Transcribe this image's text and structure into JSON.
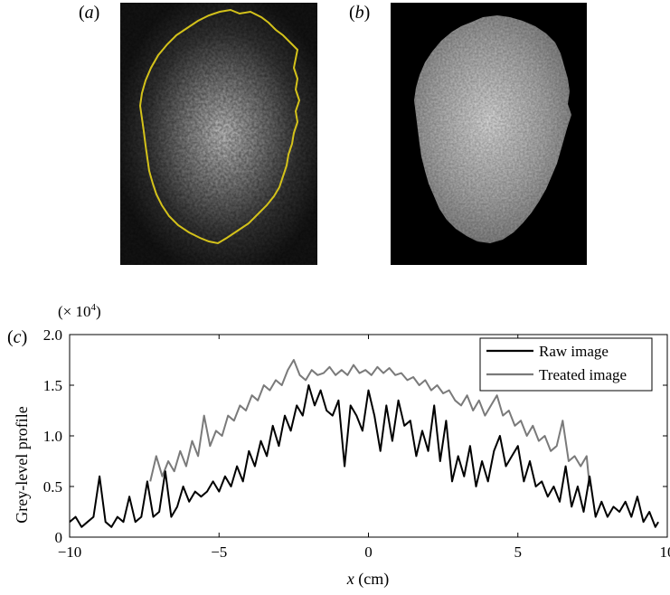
{
  "figure": {
    "panel_a_label": "a",
    "panel_b_label": "b",
    "panel_c_label": "c"
  },
  "images": {
    "a_description": "",
    "b_description": ""
  },
  "colors": {
    "raw": "#000000",
    "treated": "#7a7a7a",
    "outline": "#d4c21a"
  },
  "chart_data": {
    "type": "line",
    "xlabel": "x (cm)",
    "xlabel_var": "x",
    "xlabel_unit": " (cm)",
    "ylabel": "Grey-level profile",
    "y_multiplier": "(× 10",
    "y_multiplier_exp": "4",
    "y_multiplier_close": ")",
    "xlim": [
      -10,
      10
    ],
    "ylim": [
      0,
      2.0
    ],
    "x_ticks": [
      -10,
      -5,
      0,
      5,
      10
    ],
    "x_tick_labels": [
      "−10",
      "−5",
      "0",
      "5",
      "10"
    ],
    "y_ticks": [
      0,
      0.5,
      1.0,
      1.5,
      2.0
    ],
    "y_tick_labels": [
      "0",
      "0.5",
      "1.0",
      "1.5",
      "2.0"
    ],
    "legend_position": "top-right",
    "series": [
      {
        "name": "Raw image",
        "color": "#000000",
        "x": [
          -10,
          -9.8,
          -9.6,
          -9.4,
          -9.2,
          -9.0,
          -8.8,
          -8.6,
          -8.4,
          -8.2,
          -8.0,
          -7.8,
          -7.6,
          -7.4,
          -7.2,
          -7.0,
          -6.8,
          -6.6,
          -6.4,
          -6.2,
          -6.0,
          -5.8,
          -5.6,
          -5.4,
          -5.2,
          -5.0,
          -4.8,
          -4.6,
          -4.4,
          -4.2,
          -4.0,
          -3.8,
          -3.6,
          -3.4,
          -3.2,
          -3.0,
          -2.8,
          -2.6,
          -2.4,
          -2.2,
          -2.0,
          -1.8,
          -1.6,
          -1.4,
          -1.2,
          -1.0,
          -0.8,
          -0.6,
          -0.4,
          -0.2,
          0.0,
          0.2,
          0.4,
          0.6,
          0.8,
          1.0,
          1.2,
          1.4,
          1.6,
          1.8,
          2.0,
          2.2,
          2.4,
          2.6,
          2.8,
          3.0,
          3.2,
          3.4,
          3.6,
          3.8,
          4.0,
          4.2,
          4.4,
          4.6,
          4.8,
          5.0,
          5.2,
          5.4,
          5.6,
          5.8,
          6.0,
          6.2,
          6.4,
          6.6,
          6.8,
          7.0,
          7.2,
          7.4,
          7.6,
          7.8,
          8.0,
          8.2,
          8.4,
          8.6,
          8.8,
          9.0,
          9.2,
          9.4,
          9.6,
          9.7
        ],
        "y": [
          0.15,
          0.2,
          0.1,
          0.15,
          0.2,
          0.6,
          0.15,
          0.1,
          0.2,
          0.15,
          0.4,
          0.15,
          0.2,
          0.55,
          0.2,
          0.25,
          0.65,
          0.2,
          0.3,
          0.5,
          0.35,
          0.45,
          0.4,
          0.45,
          0.55,
          0.45,
          0.6,
          0.5,
          0.7,
          0.55,
          0.85,
          0.7,
          0.95,
          0.8,
          1.1,
          0.9,
          1.2,
          1.05,
          1.3,
          1.2,
          1.5,
          1.3,
          1.45,
          1.25,
          1.2,
          1.35,
          0.7,
          1.3,
          1.2,
          1.05,
          1.45,
          1.2,
          0.85,
          1.3,
          0.95,
          1.35,
          1.1,
          1.15,
          0.8,
          1.05,
          0.85,
          1.3,
          0.75,
          1.15,
          0.55,
          0.8,
          0.6,
          0.9,
          0.5,
          0.75,
          0.55,
          0.85,
          1.0,
          0.7,
          0.8,
          0.9,
          0.55,
          0.75,
          0.5,
          0.55,
          0.4,
          0.5,
          0.35,
          0.7,
          0.3,
          0.5,
          0.25,
          0.6,
          0.2,
          0.35,
          0.2,
          0.3,
          0.25,
          0.35,
          0.2,
          0.4,
          0.15,
          0.25,
          0.1,
          0.15
        ]
      },
      {
        "name": "Treated image",
        "color": "#7a7a7a",
        "x": [
          -7.3,
          -7.1,
          -6.9,
          -6.7,
          -6.5,
          -6.3,
          -6.1,
          -5.9,
          -5.7,
          -5.5,
          -5.3,
          -5.1,
          -4.9,
          -4.7,
          -4.5,
          -4.3,
          -4.1,
          -3.9,
          -3.7,
          -3.5,
          -3.3,
          -3.1,
          -2.9,
          -2.7,
          -2.5,
          -2.3,
          -2.1,
          -1.9,
          -1.7,
          -1.5,
          -1.3,
          -1.1,
          -0.9,
          -0.7,
          -0.5,
          -0.3,
          -0.1,
          0.1,
          0.3,
          0.5,
          0.7,
          0.9,
          1.1,
          1.3,
          1.5,
          1.7,
          1.9,
          2.1,
          2.3,
          2.5,
          2.7,
          2.9,
          3.1,
          3.3,
          3.5,
          3.7,
          3.9,
          4.1,
          4.3,
          4.5,
          4.7,
          4.9,
          5.1,
          5.3,
          5.5,
          5.7,
          5.9,
          6.1,
          6.3,
          6.5,
          6.7,
          6.9,
          7.1,
          7.3,
          7.4
        ],
        "y": [
          0.55,
          0.8,
          0.6,
          0.75,
          0.65,
          0.85,
          0.7,
          0.95,
          0.8,
          1.2,
          0.9,
          1.05,
          1.0,
          1.2,
          1.15,
          1.3,
          1.25,
          1.4,
          1.35,
          1.5,
          1.45,
          1.55,
          1.5,
          1.65,
          1.75,
          1.6,
          1.55,
          1.65,
          1.6,
          1.62,
          1.68,
          1.6,
          1.65,
          1.6,
          1.7,
          1.62,
          1.65,
          1.6,
          1.68,
          1.62,
          1.67,
          1.6,
          1.62,
          1.55,
          1.58,
          1.5,
          1.55,
          1.45,
          1.5,
          1.42,
          1.45,
          1.35,
          1.3,
          1.4,
          1.25,
          1.35,
          1.2,
          1.3,
          1.4,
          1.2,
          1.25,
          1.1,
          1.15,
          1.0,
          1.1,
          0.95,
          1.0,
          0.85,
          0.9,
          1.15,
          0.75,
          0.8,
          0.7,
          0.8,
          0.5
        ]
      }
    ]
  }
}
